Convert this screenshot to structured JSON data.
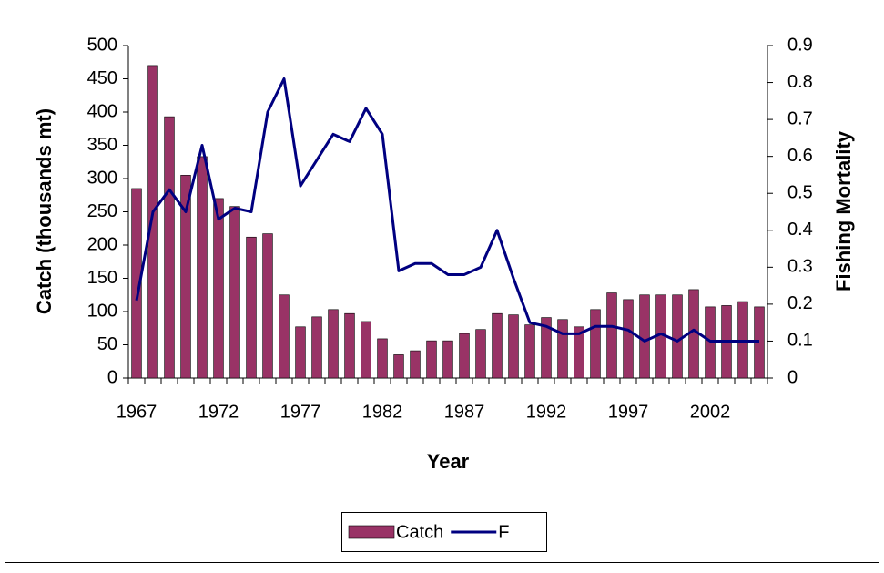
{
  "chart_data": {
    "type": "combo",
    "x_label": "Year",
    "y_label": "Catch (thousands mt)",
    "y2_label": "Fishing Mortality",
    "categories": [
      1967,
      null,
      null,
      null,
      null,
      1972,
      null,
      null,
      null,
      null,
      1977,
      null,
      null,
      null,
      null,
      1982,
      null,
      null,
      null,
      null,
      1987,
      null,
      null,
      null,
      null,
      1992,
      null,
      null,
      null,
      null,
      1997,
      null,
      null,
      null,
      null,
      2002,
      null,
      null,
      null
    ],
    "series": [
      {
        "name": "Catch",
        "type": "bar",
        "color": "#993366",
        "values": [
          285,
          470,
          393,
          305,
          333,
          270,
          258,
          212,
          217,
          125,
          77,
          92,
          103,
          97,
          85,
          59,
          35,
          41,
          56,
          56,
          67,
          73,
          97,
          95,
          80,
          91,
          88,
          77,
          103,
          128,
          118,
          125,
          125,
          125,
          133,
          107,
          109,
          115,
          107
        ]
      },
      {
        "name": "F",
        "type": "line",
        "axis": "y2",
        "color": "#000080",
        "values": [
          0.21,
          0.45,
          0.51,
          0.45,
          0.63,
          0.43,
          0.46,
          0.45,
          0.72,
          0.81,
          0.52,
          0.59,
          0.66,
          0.64,
          0.73,
          0.66,
          0.29,
          0.31,
          0.31,
          0.28,
          0.28,
          0.3,
          0.4,
          0.27,
          0.15,
          0.14,
          0.12,
          0.12,
          0.14,
          0.14,
          0.13,
          0.1,
          0.12,
          0.1,
          0.13,
          0.1,
          0.1,
          0.1,
          0.1
        ]
      }
    ],
    "ylim": [
      0,
      500
    ],
    "yticks": [
      0,
      50,
      100,
      150,
      200,
      250,
      300,
      350,
      400,
      450,
      500
    ],
    "y2lim": [
      0,
      0.9
    ],
    "y2ticks": [
      0,
      0.1,
      0.2,
      0.3,
      0.4,
      0.5,
      0.6,
      0.7,
      0.8,
      0.9
    ],
    "grid": false,
    "legend": "bottom"
  }
}
